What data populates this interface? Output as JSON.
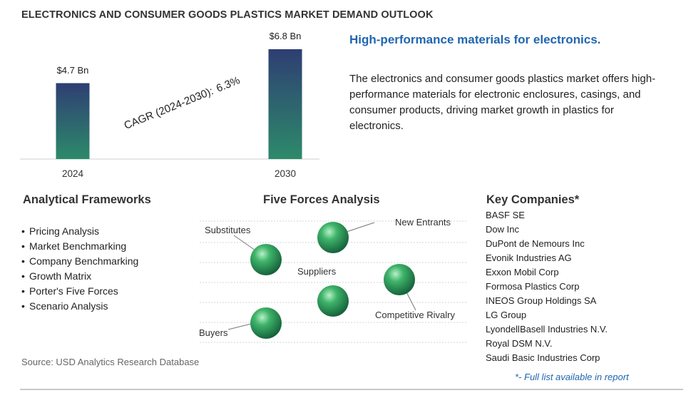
{
  "title": "ELECTRONICS AND CONSUMER GOODS PLASTICS MARKET DEMAND OUTLOOK",
  "chart_data": {
    "type": "bar",
    "categories": [
      "2024",
      "2030"
    ],
    "values": [
      4.7,
      6.8
    ],
    "data_labels": [
      "$4.7 Bn",
      "$6.8 Bn"
    ],
    "unit": "Bn",
    "ylim": [
      0,
      6.8
    ],
    "annotation": {
      "label": "CAGR (2024-2030):",
      "value": "6.3%"
    },
    "colors": {
      "bar_top": "#2e3e73",
      "bar_bottom": "#2d8a6a"
    }
  },
  "headline": "High-performance materials for electronics.",
  "description": "The electronics and consumer goods plastics market offers high-performance materials for electronic enclosures, casings, and consumer products, driving market growth in plastics for electronics.",
  "frameworks": {
    "heading": "Analytical Frameworks",
    "items": [
      "Pricing Analysis",
      "Market Benchmarking",
      "Company Benchmarking",
      "Growth Matrix",
      "Porter's Five Forces",
      "Scenario Analysis"
    ]
  },
  "five_forces": {
    "heading": "Five Forces Analysis",
    "labels": {
      "substitutes": "Substitutes",
      "new_entrants": "New Entrants",
      "suppliers": "Suppliers",
      "competitive_rivalry": "Competitive Rivalry",
      "buyers": "Buyers"
    },
    "sphere_color": "#2f9e5a"
  },
  "companies": {
    "heading": "Key Companies*",
    "items": [
      "BASF SE",
      "Dow Inc",
      "DuPont de Nemours Inc",
      "Evonik Industries AG",
      "Exxon Mobil Corp",
      "Formosa Plastics Corp",
      "INEOS Group Holdings SA",
      "LG Group",
      "LyondellBasell Industries N.V.",
      "Royal DSM N.V.",
      "Saudi Basic Industries Corp"
    ],
    "footnote": "*- Full list available in report"
  },
  "source": "Source: USD Analytics Research Database"
}
